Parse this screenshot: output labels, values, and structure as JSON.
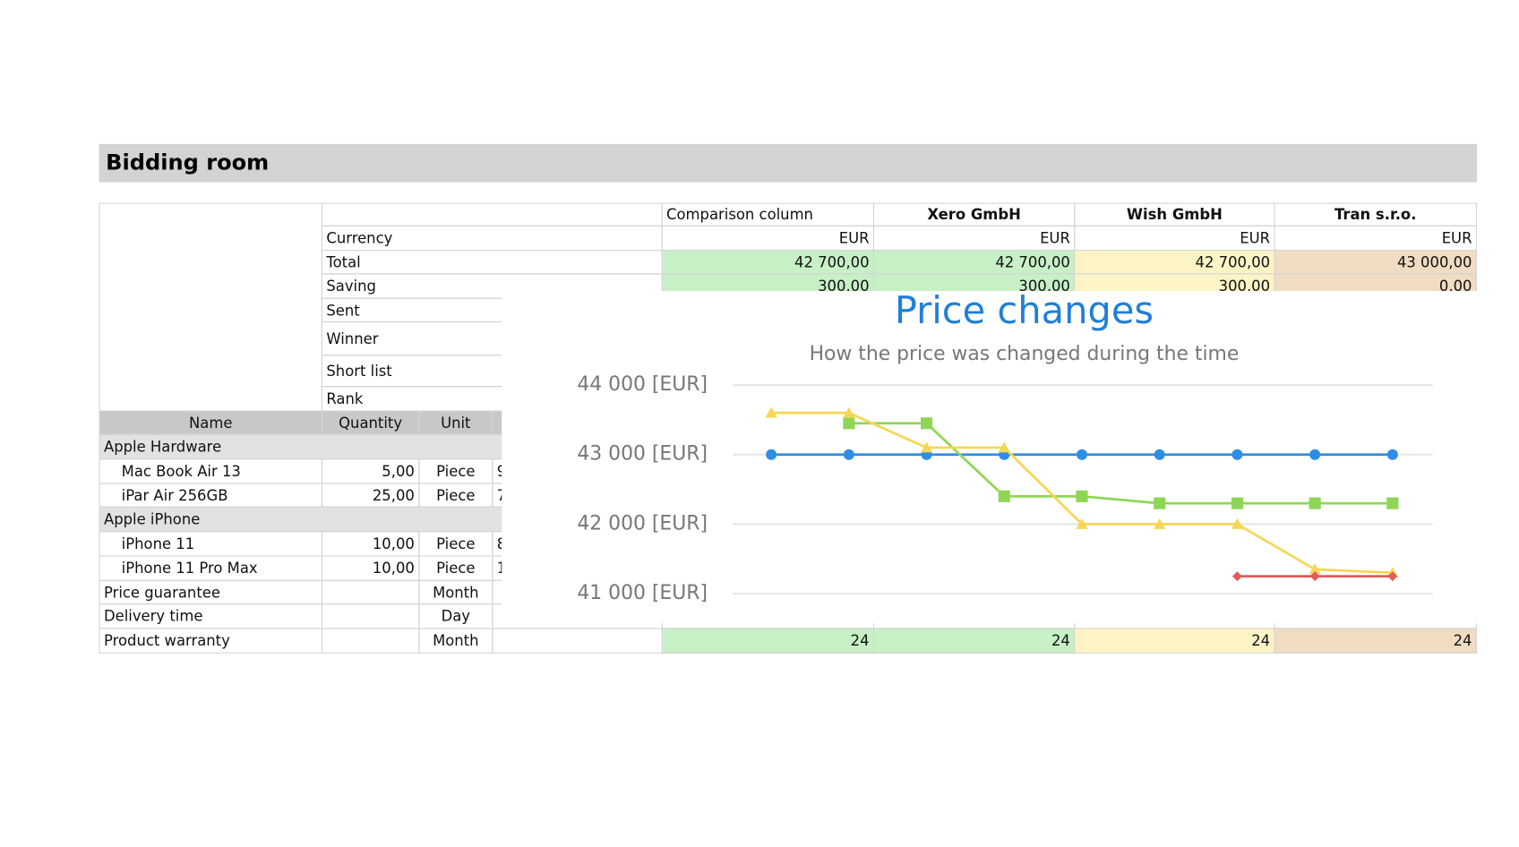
{
  "header": {
    "title": "Bidding room"
  },
  "summary": {
    "columns": [
      "Comparison column",
      "Xero GmbH",
      "Wish GmbH",
      "Tran s.r.o."
    ],
    "column_colors": [
      "#c7f0c7",
      "#c7f0c7",
      "#fdf4c6",
      "#f0dcc2"
    ],
    "rows": [
      {
        "label": "Currency",
        "values": [
          "EUR",
          "EUR",
          "EUR",
          "EUR"
        ]
      },
      {
        "label": "Total",
        "values": [
          "42 700,00",
          "42 700,00",
          "42 700,00",
          "43 000,00"
        ],
        "colored": true
      },
      {
        "label": "Saving",
        "values": [
          "300,00",
          "300,00",
          "300,00",
          "0,00"
        ],
        "colored": true
      },
      {
        "label": "Sent"
      },
      {
        "label": "Winner"
      },
      {
        "label": "Short list"
      },
      {
        "label": "Rank"
      }
    ]
  },
  "items": {
    "columns": [
      "Name",
      "Quantity",
      "Unit"
    ],
    "rows": [
      {
        "name": "Apple Hardware",
        "group": true
      },
      {
        "name": "Mac Book Air 13",
        "quantity": "5,00",
        "unit": "Piece",
        "price": "9"
      },
      {
        "name": "iPar Air 256GB",
        "quantity": "25,00",
        "unit": "Piece",
        "price": "7"
      },
      {
        "name": "Apple iPhone",
        "group": true
      },
      {
        "name": "iPhone 11",
        "quantity": "10,00",
        "unit": "Piece",
        "price": "8"
      },
      {
        "name": "iPhone 11 Pro Max",
        "quantity": "10,00",
        "unit": "Piece",
        "price": "1"
      },
      {
        "name": "Price guarantee",
        "unit": "Month"
      },
      {
        "name": "Delivery time",
        "unit": "Day"
      },
      {
        "name": "Product warranty",
        "unit": "Month",
        "values": [
          24,
          24,
          24,
          24
        ]
      }
    ]
  },
  "chart_data": {
    "type": "line",
    "title": "Price changes",
    "subtitle": "How the price was changed during the time",
    "categories": [
      null,
      null,
      null,
      null,
      null,
      null,
      null,
      null,
      null
    ],
    "series": [
      {
        "color": "#2f8de4",
        "marker": "circle",
        "values": [
          43000,
          43000,
          43000,
          43000,
          43000,
          43000,
          43000,
          43000,
          43000
        ]
      },
      {
        "color": "#8fd657",
        "marker": "square",
        "values": [
          null,
          43450,
          43450,
          42400,
          42400,
          42300,
          42300,
          42300,
          42300
        ]
      },
      {
        "color": "#f7d654",
        "marker": "triangle",
        "values": [
          43600,
          43600,
          43100,
          43100,
          42000,
          42000,
          42000,
          41350,
          41300
        ]
      },
      {
        "color": "#e35b5b",
        "marker": "diamond",
        "values": [
          null,
          null,
          null,
          null,
          null,
          null,
          41250,
          41250,
          41250
        ]
      }
    ],
    "ylim": [
      41000,
      44000
    ],
    "yticks": [
      {
        "value": 41000,
        "label": "41 000 [EUR]"
      },
      {
        "value": 42000,
        "label": "42 000 [EUR]"
      },
      {
        "value": 43000,
        "label": "43 000 [EUR]"
      },
      {
        "value": 44000,
        "label": "44 000 [EUR]"
      }
    ],
    "grid": true
  }
}
